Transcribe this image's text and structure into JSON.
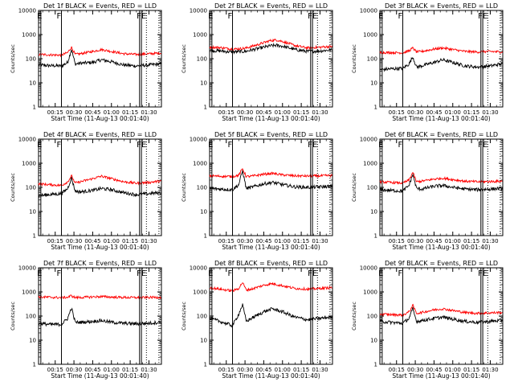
{
  "figure": {
    "title": "",
    "xlabel": "Start Time (11-Aug-13 00:01:40)",
    "ylabel": "Counts/sec",
    "colors": {
      "events": "#000000",
      "lld": "#ff0000",
      "background": "#ffffff"
    },
    "x_tick_labels": [
      "00:15",
      "00:30",
      "00:45",
      "01:00",
      "01:15",
      "01:30"
    ],
    "y_tick_labels": [
      "1",
      "10",
      "100",
      "1000",
      "10000"
    ]
  },
  "chart_data": [
    {
      "type": "line",
      "title": "Det 1f BLACK = Events, RED = LLD",
      "x_unit": "minutes after 00:00",
      "x": [
        1.67,
        10,
        20,
        25,
        28,
        31,
        35,
        45,
        52,
        60,
        70,
        80,
        90,
        98
      ],
      "series": [
        {
          "name": "Events",
          "color": "#000000",
          "values": [
            55,
            52,
            50,
            70,
            250,
            60,
            65,
            70,
            90,
            75,
            55,
            50,
            55,
            60
          ]
        },
        {
          "name": "LLD",
          "color": "#ff0000",
          "values": [
            150,
            145,
            140,
            180,
            300,
            150,
            160,
            200,
            240,
            200,
            160,
            150,
            160,
            170
          ]
        }
      ],
      "ylim": [
        1,
        10000
      ],
      "y_scale": "log",
      "xlim": [
        1.67,
        100
      ],
      "markers": [
        {
          "label": "E",
          "x": 2.5
        },
        {
          "label": "F",
          "x": 18
        },
        {
          "label": "F",
          "x": 82
        },
        {
          "label": "E",
          "x": 86
        }
      ],
      "solid_lines": [
        3.5,
        20,
        82.5,
        84
      ],
      "dotted_lines": [
        88,
        98
      ]
    },
    {
      "type": "line",
      "title": "Det 2f BLACK = Events, RED = LLD",
      "x_unit": "minutes after 00:00",
      "x": [
        1.67,
        10,
        20,
        30,
        40,
        50,
        55,
        60,
        70,
        80,
        90,
        98
      ],
      "series": [
        {
          "name": "Events",
          "color": "#000000",
          "values": [
            220,
            210,
            190,
            200,
            260,
            340,
            360,
            330,
            240,
            200,
            210,
            230
          ]
        },
        {
          "name": "LLD",
          "color": "#ff0000",
          "values": [
            300,
            290,
            250,
            270,
            380,
            560,
            600,
            520,
            350,
            280,
            300,
            320
          ]
        }
      ],
      "ylim": [
        1,
        10000
      ],
      "y_scale": "log",
      "xlim": [
        1.67,
        100
      ],
      "markers": [
        {
          "label": "E",
          "x": 2.5
        },
        {
          "label": "F",
          "x": 18
        },
        {
          "label": "F",
          "x": 82
        },
        {
          "label": "E",
          "x": 86
        }
      ],
      "solid_lines": [
        3.5,
        20,
        82.5,
        84
      ],
      "dotted_lines": [
        88,
        98
      ]
    },
    {
      "type": "line",
      "title": "Det 3f BLACK = Events, RED = LLD",
      "x_unit": "minutes after 00:00",
      "x": [
        1.67,
        10,
        20,
        25,
        28,
        31,
        35,
        45,
        52,
        60,
        70,
        80,
        90,
        98
      ],
      "series": [
        {
          "name": "Events",
          "color": "#000000",
          "values": [
            35,
            38,
            40,
            60,
            120,
            45,
            50,
            70,
            90,
            70,
            50,
            45,
            50,
            60
          ]
        },
        {
          "name": "LLD",
          "color": "#ff0000",
          "values": [
            180,
            180,
            175,
            210,
            280,
            190,
            200,
            250,
            280,
            240,
            200,
            190,
            200,
            190
          ]
        }
      ],
      "ylim": [
        1,
        10000
      ],
      "y_scale": "log",
      "xlim": [
        1.67,
        100
      ],
      "markers": [
        {
          "label": "E",
          "x": 2.5
        },
        {
          "label": "F",
          "x": 18
        },
        {
          "label": "F",
          "x": 82
        },
        {
          "label": "E",
          "x": 86
        }
      ],
      "solid_lines": [
        3.5,
        20,
        82.5,
        84
      ],
      "dotted_lines": [
        88,
        98
      ]
    },
    {
      "type": "line",
      "title": "Det 4f BLACK = Events, RED = LLD",
      "x_unit": "minutes after 00:00",
      "x": [
        1.67,
        10,
        20,
        25,
        28,
        31,
        35,
        45,
        52,
        60,
        70,
        80,
        90,
        98
      ],
      "series": [
        {
          "name": "Events",
          "color": "#000000",
          "values": [
            45,
            50,
            55,
            90,
            250,
            70,
            65,
            75,
            90,
            80,
            60,
            50,
            55,
            60
          ]
        },
        {
          "name": "LLD",
          "color": "#ff0000",
          "values": [
            140,
            130,
            120,
            170,
            300,
            150,
            170,
            230,
            290,
            230,
            170,
            150,
            160,
            180
          ]
        }
      ],
      "ylim": [
        1,
        10000
      ],
      "y_scale": "log",
      "xlim": [
        1.67,
        100
      ],
      "markers": [
        {
          "label": "E",
          "x": 2.5
        },
        {
          "label": "F",
          "x": 18
        },
        {
          "label": "F",
          "x": 82
        },
        {
          "label": "E",
          "x": 86
        }
      ],
      "solid_lines": [
        3.5,
        20,
        82.5,
        84
      ],
      "dotted_lines": [
        88,
        98
      ]
    },
    {
      "type": "line",
      "title": "Det 5f BLACK = Events, RED = LLD",
      "x_unit": "minutes after 00:00",
      "x": [
        1.67,
        10,
        20,
        25,
        28,
        31,
        35,
        45,
        52,
        60,
        70,
        80,
        90,
        98
      ],
      "series": [
        {
          "name": "Events",
          "color": "#000000",
          "values": [
            90,
            85,
            80,
            130,
            500,
            90,
            100,
            140,
            160,
            130,
            105,
            100,
            105,
            110
          ]
        },
        {
          "name": "LLD",
          "color": "#ff0000",
          "values": [
            300,
            290,
            280,
            320,
            600,
            280,
            290,
            350,
            380,
            330,
            300,
            295,
            300,
            310
          ]
        }
      ],
      "ylim": [
        1,
        10000
      ],
      "y_scale": "log",
      "xlim": [
        1.67,
        100
      ],
      "markers": [
        {
          "label": "E",
          "x": 2.5
        },
        {
          "label": "F",
          "x": 18
        },
        {
          "label": "F",
          "x": 82
        },
        {
          "label": "E",
          "x": 86
        }
      ],
      "solid_lines": [
        3.5,
        20,
        82.5,
        84
      ],
      "dotted_lines": [
        88,
        98
      ]
    },
    {
      "type": "line",
      "title": "Det 6f BLACK = Events, RED = LLD",
      "x_unit": "minutes after 00:00",
      "x": [
        1.67,
        10,
        20,
        25,
        28,
        31,
        35,
        45,
        52,
        60,
        70,
        80,
        90,
        98
      ],
      "series": [
        {
          "name": "Events",
          "color": "#000000",
          "values": [
            80,
            75,
            70,
            120,
            350,
            90,
            85,
            110,
            120,
            100,
            85,
            80,
            85,
            90
          ]
        },
        {
          "name": "LLD",
          "color": "#ff0000",
          "values": [
            170,
            160,
            150,
            200,
            420,
            170,
            180,
            220,
            240,
            210,
            180,
            170,
            175,
            180
          ]
        }
      ],
      "ylim": [
        1,
        10000
      ],
      "y_scale": "log",
      "xlim": [
        1.67,
        100
      ],
      "markers": [
        {
          "label": "E",
          "x": 2.5
        },
        {
          "label": "F",
          "x": 18
        },
        {
          "label": "F",
          "x": 82
        },
        {
          "label": "E",
          "x": 86
        }
      ],
      "solid_lines": [
        3.5,
        20,
        82.5,
        84
      ],
      "dotted_lines": [
        88,
        98
      ]
    },
    {
      "type": "line",
      "title": "Det 7f BLACK = Events, RED = LLD",
      "x_unit": "minutes after 00:00",
      "x": [
        1.67,
        10,
        20,
        25,
        28,
        31,
        35,
        45,
        52,
        60,
        70,
        80,
        90,
        98
      ],
      "series": [
        {
          "name": "Events",
          "color": "#000000",
          "values": [
            50,
            45,
            45,
            80,
            220,
            55,
            55,
            60,
            65,
            55,
            50,
            48,
            50,
            55
          ]
        },
        {
          "name": "LLD",
          "color": "#ff0000",
          "values": [
            620,
            600,
            580,
            600,
            700,
            580,
            590,
            620,
            640,
            610,
            590,
            580,
            590,
            600
          ]
        }
      ],
      "ylim": [
        1,
        10000
      ],
      "y_scale": "log",
      "xlim": [
        1.67,
        100
      ],
      "markers": [
        {
          "label": "E",
          "x": 2.5
        },
        {
          "label": "F",
          "x": 18
        },
        {
          "label": "F",
          "x": 82
        },
        {
          "label": "E",
          "x": 86
        }
      ],
      "solid_lines": [
        3.5,
        20,
        82.5,
        84
      ],
      "dotted_lines": [
        88,
        98
      ]
    },
    {
      "type": "line",
      "title": "Det 8f BLACK = Events, RED = LLD",
      "x_unit": "minutes after 00:00",
      "x": [
        1.67,
        10,
        20,
        25,
        28,
        31,
        35,
        45,
        52,
        60,
        70,
        80,
        90,
        98
      ],
      "series": [
        {
          "name": "Events",
          "color": "#000000",
          "values": [
            80,
            60,
            40,
            120,
            300,
            60,
            80,
            150,
            200,
            150,
            90,
            70,
            80,
            90
          ]
        },
        {
          "name": "LLD",
          "color": "#ff0000",
          "values": [
            1500,
            1300,
            1100,
            1400,
            2500,
            1200,
            1300,
            1900,
            2200,
            1800,
            1400,
            1300,
            1400,
            1500
          ]
        }
      ],
      "ylim": [
        1,
        10000
      ],
      "y_scale": "log",
      "xlim": [
        1.67,
        100
      ],
      "markers": [
        {
          "label": "E",
          "x": 2.5
        },
        {
          "label": "F",
          "x": 18
        },
        {
          "label": "F",
          "x": 82
        },
        {
          "label": "E",
          "x": 86
        }
      ],
      "solid_lines": [
        3.5,
        20,
        82.5,
        84
      ],
      "dotted_lines": [
        88,
        98
      ]
    },
    {
      "type": "line",
      "title": "Det 9f BLACK = Events, RED = LLD",
      "x_unit": "minutes after 00:00",
      "x": [
        1.67,
        10,
        20,
        25,
        28,
        31,
        35,
        45,
        52,
        60,
        70,
        80,
        90,
        98
      ],
      "series": [
        {
          "name": "Events",
          "color": "#000000",
          "values": [
            60,
            55,
            50,
            80,
            200,
            60,
            65,
            80,
            90,
            75,
            60,
            55,
            60,
            65
          ]
        },
        {
          "name": "LLD",
          "color": "#ff0000",
          "values": [
            120,
            115,
            110,
            150,
            280,
            130,
            140,
            180,
            200,
            170,
            140,
            130,
            135,
            140
          ]
        }
      ],
      "ylim": [
        1,
        10000
      ],
      "y_scale": "log",
      "xlim": [
        1.67,
        100
      ],
      "markers": [
        {
          "label": "E",
          "x": 2.5
        },
        {
          "label": "F",
          "x": 18
        },
        {
          "label": "F",
          "x": 82
        },
        {
          "label": "E",
          "x": 86
        }
      ],
      "solid_lines": [
        3.5,
        20,
        82.5,
        84
      ],
      "dotted_lines": [
        88,
        98
      ]
    }
  ]
}
